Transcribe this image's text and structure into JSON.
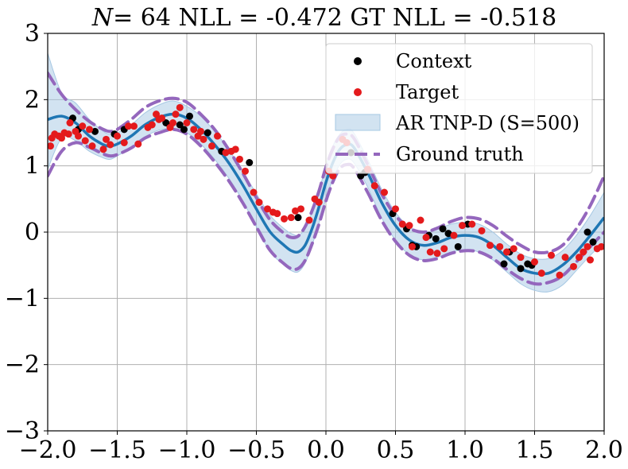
{
  "chart_data": {
    "type": "scatter",
    "title_parts": [
      "N",
      "= 64 NLL = -0.472 GT NLL = -0.518"
    ],
    "xlim": [
      -2.0,
      2.0
    ],
    "ylim": [
      -3,
      3
    ],
    "x_ticks": [
      -2.0,
      -1.5,
      -1.0,
      -0.5,
      0.0,
      0.5,
      1.0,
      1.5,
      2.0
    ],
    "x_tick_labels": [
      "−2.0",
      "−1.5",
      "−1.0",
      "−0.5",
      "0.0",
      "0.5",
      "1.0",
      "1.5",
      "2.0"
    ],
    "y_ticks": [
      -3,
      -2,
      -1,
      0,
      1,
      2,
      3
    ],
    "y_tick_labels": [
      "−3",
      "−2",
      "−1",
      "0",
      "1",
      "2",
      "3"
    ],
    "grid": true,
    "legend_position": "top-right",
    "legend": [
      "Context",
      "Target",
      "AR TNP-D (S=500)",
      "Ground truth"
    ],
    "colors": {
      "context": "#000000",
      "target": "#e41a1c",
      "band": "#a6c8e3",
      "mean": "#1f77b4",
      "ground_truth": "#9467bd",
      "grid": "#b0b0b0"
    },
    "mean_curve": {
      "x": [
        -2.0,
        -1.9,
        -1.8,
        -1.7,
        -1.6,
        -1.55,
        -1.5,
        -1.4,
        -1.3,
        -1.2,
        -1.1,
        -1.0,
        -0.9,
        -0.8,
        -0.7,
        -0.6,
        -0.5,
        -0.4,
        -0.3,
        -0.25,
        -0.2,
        -0.15,
        -0.1,
        -0.05,
        0.0,
        0.05,
        0.1,
        0.15,
        0.2,
        0.3,
        0.4,
        0.5,
        0.6,
        0.7,
        0.8,
        0.9,
        1.0,
        1.1,
        1.2,
        1.3,
        1.4,
        1.5,
        1.6,
        1.7,
        1.8,
        1.9,
        2.0
      ],
      "y": [
        1.7,
        1.75,
        1.65,
        1.45,
        1.32,
        1.3,
        1.33,
        1.45,
        1.62,
        1.73,
        1.78,
        1.72,
        1.55,
        1.32,
        1.05,
        0.72,
        0.35,
        0.0,
        -0.2,
        -0.28,
        -0.3,
        -0.2,
        0.05,
        0.38,
        0.75,
        1.05,
        1.25,
        1.32,
        1.28,
        0.9,
        0.45,
        0.1,
        -0.12,
        -0.2,
        -0.16,
        -0.08,
        -0.05,
        -0.08,
        -0.2,
        -0.38,
        -0.55,
        -0.62,
        -0.62,
        -0.5,
        -0.3,
        -0.05,
        0.22
      ]
    },
    "band_upper": [
      2.7,
      2.1,
      1.95,
      1.7,
      1.52,
      1.48,
      1.5,
      1.62,
      1.8,
      1.92,
      1.98,
      1.9,
      1.75,
      1.52,
      1.25,
      0.92,
      0.58,
      0.25,
      0.05,
      -0.02,
      -0.05,
      0.05,
      0.3,
      0.62,
      1.0,
      1.3,
      1.48,
      1.55,
      1.5,
      1.1,
      0.65,
      0.3,
      0.08,
      0.0,
      0.04,
      0.12,
      0.15,
      0.12,
      0.0,
      -0.18,
      -0.33,
      -0.4,
      -0.4,
      -0.28,
      -0.05,
      0.25,
      0.6
    ],
    "band_lower": [
      0.95,
      1.42,
      1.38,
      1.22,
      1.12,
      1.1,
      1.15,
      1.28,
      1.44,
      1.54,
      1.56,
      1.5,
      1.33,
      1.1,
      0.82,
      0.48,
      0.08,
      -0.3,
      -0.5,
      -0.58,
      -0.6,
      -0.47,
      -0.2,
      0.14,
      0.5,
      0.8,
      1.02,
      1.1,
      1.05,
      0.68,
      0.22,
      -0.12,
      -0.34,
      -0.42,
      -0.38,
      -0.3,
      -0.27,
      -0.3,
      -0.42,
      -0.6,
      -0.78,
      -0.88,
      -0.9,
      -0.8,
      -0.58,
      -0.35,
      -0.15
    ],
    "ground_truth_upper": [
      2.4,
      2.08,
      1.85,
      1.67,
      1.55,
      1.52,
      1.55,
      1.7,
      1.88,
      1.98,
      2.02,
      1.96,
      1.78,
      1.55,
      1.25,
      0.9,
      0.52,
      0.18,
      -0.02,
      -0.08,
      -0.06,
      0.08,
      0.32,
      0.62,
      0.98,
      1.26,
      1.44,
      1.48,
      1.42,
      1.02,
      0.58,
      0.25,
      0.06,
      0.0,
      0.06,
      0.16,
      0.22,
      0.2,
      0.1,
      -0.06,
      -0.2,
      -0.3,
      -0.3,
      -0.2,
      0.05,
      0.4,
      0.85
    ],
    "ground_truth_lower": [
      0.85,
      1.22,
      1.35,
      1.28,
      1.18,
      1.15,
      1.17,
      1.27,
      1.42,
      1.5,
      1.55,
      1.48,
      1.3,
      1.06,
      0.78,
      0.45,
      0.08,
      -0.28,
      -0.48,
      -0.55,
      -0.55,
      -0.43,
      -0.18,
      0.12,
      0.47,
      0.76,
      0.96,
      1.02,
      0.97,
      0.6,
      0.18,
      -0.14,
      -0.35,
      -0.43,
      -0.4,
      -0.32,
      -0.28,
      -0.3,
      -0.4,
      -0.56,
      -0.7,
      -0.78,
      -0.76,
      -0.66,
      -0.45,
      -0.22,
      0.0
    ],
    "context_points": {
      "x": [
        -1.82,
        -1.78,
        -1.66,
        -1.52,
        -1.45,
        -1.15,
        -1.12,
        -1.05,
        -1.02,
        -0.98,
        -0.85,
        -0.75,
        -0.55,
        -0.2,
        0.18,
        0.25,
        0.28,
        0.48,
        0.58,
        0.62,
        0.65,
        0.74,
        0.79,
        0.84,
        0.88,
        0.95,
        1.02,
        1.28,
        1.32,
        1.4,
        1.45,
        1.48,
        1.88,
        1.92
      ],
      "y": [
        1.72,
        1.55,
        1.52,
        1.48,
        1.55,
        1.65,
        1.6,
        1.62,
        1.55,
        1.75,
        1.5,
        1.22,
        1.05,
        0.22,
        1.2,
        0.85,
        0.9,
        0.28,
        0.05,
        -0.2,
        -0.22,
        -0.05,
        -0.1,
        0.05,
        -0.02,
        -0.22,
        0.12,
        -0.48,
        -0.3,
        -0.55,
        -0.48,
        -0.5,
        0.0,
        -0.15
      ]
    },
    "target_points": {
      "x": [
        -1.98,
        -1.97,
        -1.95,
        -1.92,
        -1.9,
        -1.88,
        -1.85,
        -1.84,
        -1.8,
        -1.78,
        -1.75,
        -1.73,
        -1.7,
        -1.68,
        -1.6,
        -1.58,
        -1.55,
        -1.5,
        -1.45,
        -1.42,
        -1.38,
        -1.35,
        -1.28,
        -1.25,
        -1.22,
        -1.2,
        -1.18,
        -1.12,
        -1.1,
        -1.08,
        -1.05,
        -1.0,
        -0.95,
        -0.92,
        -0.9,
        -0.88,
        -0.82,
        -0.78,
        -0.72,
        -0.68,
        -0.65,
        -0.62,
        -0.58,
        -0.52,
        -0.48,
        -0.42,
        -0.38,
        -0.35,
        -0.3,
        -0.25,
        -0.22,
        -0.18,
        -0.12,
        -0.08,
        -0.05,
        0.02,
        0.05,
        0.12,
        0.15,
        0.3,
        0.35,
        0.42,
        0.5,
        0.55,
        0.6,
        0.62,
        0.68,
        0.72,
        0.75,
        0.8,
        0.85,
        0.92,
        0.98,
        1.05,
        1.12,
        1.18,
        1.25,
        1.3,
        1.35,
        1.4,
        1.5,
        1.55,
        1.62,
        1.68,
        1.72,
        1.78,
        1.82,
        1.85,
        1.88,
        1.9,
        1.95,
        1.98
      ],
      "y": [
        1.3,
        1.42,
        1.48,
        1.45,
        1.42,
        1.5,
        1.48,
        1.65,
        1.52,
        1.45,
        1.6,
        1.38,
        1.55,
        1.3,
        1.25,
        1.4,
        1.32,
        1.45,
        1.35,
        1.6,
        1.6,
        1.33,
        1.58,
        1.62,
        1.78,
        1.7,
        1.72,
        1.58,
        1.65,
        1.78,
        1.88,
        1.65,
        1.55,
        1.45,
        1.52,
        1.4,
        1.3,
        1.45,
        1.2,
        1.22,
        1.25,
        1.1,
        0.92,
        0.6,
        0.45,
        0.35,
        0.3,
        0.28,
        0.2,
        0.22,
        0.32,
        0.35,
        0.18,
        0.5,
        0.45,
        0.92,
        0.85,
        1.4,
        1.35,
        0.95,
        0.7,
        0.6,
        0.35,
        0.12,
        0.1,
        -0.22,
        0.18,
        -0.08,
        -0.3,
        -0.32,
        -0.25,
        -0.05,
        0.1,
        0.12,
        0.02,
        -0.2,
        -0.22,
        -0.3,
        -0.25,
        -0.38,
        -0.45,
        -0.62,
        -0.35,
        -0.65,
        -0.38,
        -0.52,
        -0.38,
        -0.3,
        -0.22,
        -0.42,
        -0.25,
        -0.22
      ]
    }
  }
}
